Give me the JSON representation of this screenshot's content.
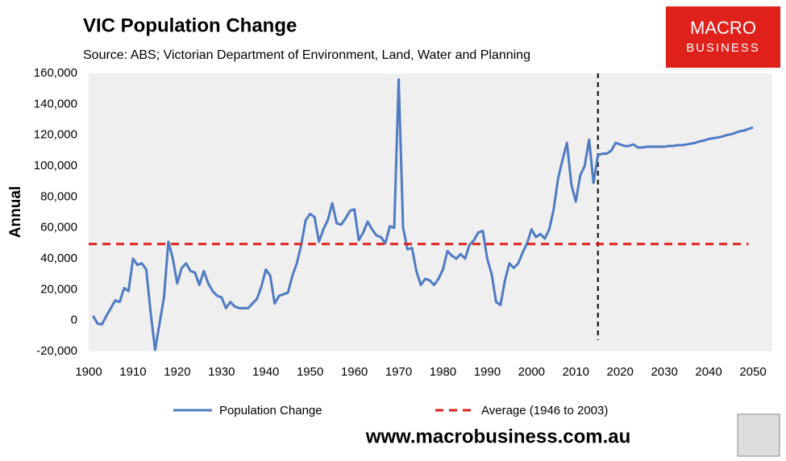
{
  "chart_data": {
    "type": "line",
    "title": "VIC Population Change",
    "subtitle": "Source: ABS; Victorian Department of Environment, Land, Water and Planning",
    "y_label": "Annual",
    "logo": [
      "MACRO",
      "BUSINESS"
    ],
    "website": "www.macrobusiness.com.au",
    "xlim": [
      1900,
      2050
    ],
    "xticks": [
      1900,
      1910,
      1920,
      1930,
      1940,
      1950,
      1960,
      1970,
      1980,
      1990,
      2000,
      2010,
      2020,
      2030,
      2040,
      2050
    ],
    "ylim": [
      -20000,
      160000
    ],
    "yticks": [
      {
        "value": -20000,
        "label": "-20,000"
      },
      0,
      {
        "value": 20000,
        "label": "20,000"
      },
      {
        "value": 40000,
        "label": "40,000"
      },
      {
        "value": 60000,
        "label": "60,000"
      },
      {
        "value": 80000,
        "label": "80,000"
      },
      {
        "value": 100000,
        "label": "100,000"
      },
      {
        "value": 120000,
        "label": "120,000"
      },
      {
        "value": 140000,
        "label": "140,000"
      },
      {
        "value": 160000,
        "label": "160,000"
      }
    ],
    "vertical_line_x": 2015,
    "series": [
      {
        "name": "Population Change",
        "color": "#4f7bc4",
        "dash": false,
        "x": [
          1901,
          1902,
          1903,
          1904,
          1905,
          1906,
          1907,
          1908,
          1909,
          1910,
          1911,
          1912,
          1913,
          1914,
          1915,
          1916,
          1917,
          1918,
          1919,
          1920,
          1921,
          1922,
          1923,
          1924,
          1925,
          1926,
          1927,
          1928,
          1929,
          1930,
          1931,
          1932,
          1933,
          1934,
          1935,
          1936,
          1937,
          1938,
          1939,
          1940,
          1941,
          1942,
          1943,
          1944,
          1945,
          1946,
          1947,
          1948,
          1949,
          1950,
          1951,
          1952,
          1953,
          1954,
          1955,
          1956,
          1957,
          1958,
          1959,
          1960,
          1961,
          1962,
          1963,
          1964,
          1965,
          1966,
          1967,
          1968,
          1969,
          1970,
          1971,
          1972,
          1973,
          1974,
          1975,
          1976,
          1977,
          1978,
          1979,
          1980,
          1981,
          1982,
          1983,
          1984,
          1985,
          1986,
          1987,
          1988,
          1989,
          1990,
          1991,
          1992,
          1993,
          1994,
          1995,
          1996,
          1997,
          1998,
          1999,
          2000,
          2001,
          2002,
          2003,
          2004,
          2005,
          2006,
          2007,
          2008,
          2009,
          2010,
          2011,
          2012,
          2013,
          2014,
          2015,
          2016,
          2017,
          2018,
          2019,
          2020,
          2021,
          2022,
          2023,
          2024,
          2025,
          2026,
          2027,
          2028,
          2029,
          2030,
          2031,
          2032,
          2033,
          2034,
          2035,
          2036,
          2037,
          2038,
          2039,
          2040,
          2041,
          2042,
          2043,
          2044,
          2045,
          2046,
          2047,
          2048,
          2049,
          2050
        ],
        "values": [
          3000,
          -2000,
          -2500,
          3000,
          8000,
          13000,
          12000,
          21000,
          19000,
          40000,
          36000,
          37000,
          33000,
          5000,
          -19000,
          -2000,
          15000,
          51000,
          40000,
          24000,
          34000,
          37000,
          32000,
          31000,
          23000,
          32000,
          24000,
          19000,
          16000,
          15000,
          8000,
          12000,
          9000,
          8000,
          8000,
          8000,
          11000,
          14000,
          22000,
          33000,
          29000,
          11000,
          16000,
          17000,
          18000,
          29000,
          37000,
          49000,
          65000,
          69000,
          67000,
          51000,
          59000,
          65000,
          76000,
          63000,
          62000,
          66000,
          71000,
          72000,
          52000,
          57000,
          64000,
          59000,
          55000,
          54000,
          50000,
          61000,
          60000,
          156000,
          60000,
          46000,
          47000,
          32000,
          23000,
          27000,
          26000,
          23000,
          27000,
          33000,
          45000,
          42000,
          40000,
          43000,
          40000,
          49000,
          52000,
          57000,
          58000,
          40000,
          30000,
          12000,
          10000,
          26000,
          37000,
          34000,
          37000,
          44000,
          50000,
          59000,
          54000,
          56000,
          53000,
          59000,
          72000,
          92000,
          104000,
          115000,
          88000,
          77000,
          94000,
          100000,
          117000,
          89000,
          107000,
          108000,
          108000,
          110000,
          115000,
          114000,
          113000,
          113000,
          114000,
          112000,
          112000,
          112500,
          112500,
          112500,
          112500,
          112500,
          113000,
          113000,
          113500,
          113500,
          114000,
          114500,
          115000,
          116000,
          116500,
          117500,
          118000,
          118500,
          119000,
          120000,
          120500,
          121500,
          122500,
          123000,
          124000,
          125000
        ]
      },
      {
        "name": "Average (1946 to 2003)",
        "color": "#e0201b",
        "dash": true,
        "x": [
          1900,
          2049
        ],
        "values": [
          49500,
          49500
        ]
      }
    ]
  }
}
